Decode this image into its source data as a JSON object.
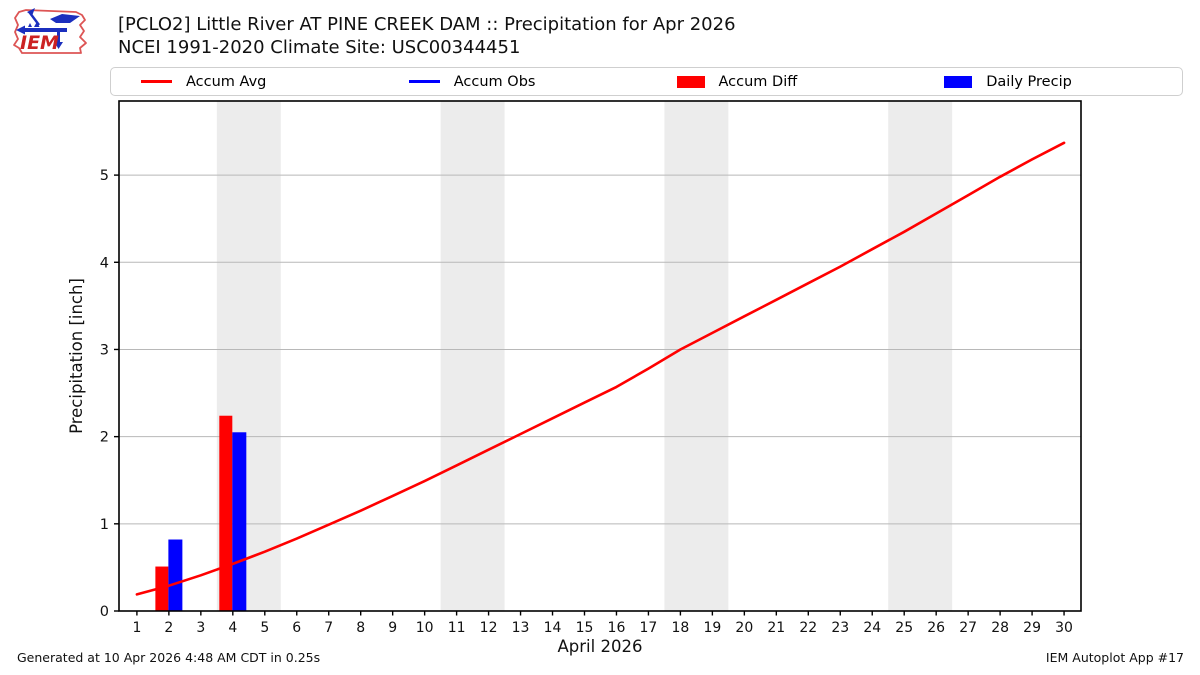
{
  "header": {
    "title_line1": "[PCLO2] Little River  AT PINE CREEK DAM :: Precipitation for Apr 2026",
    "title_line2": "NCEI 1991-2020 Climate Site: USC00344451",
    "logo_text": "IEM"
  },
  "legend": {
    "items": [
      {
        "label": "Accum Avg",
        "swatch": "line",
        "color": "#ff0000"
      },
      {
        "label": "Accum Obs",
        "swatch": "line",
        "color": "#0000ff"
      },
      {
        "label": "Accum Diff",
        "swatch": "rect",
        "color": "#ff0000"
      },
      {
        "label": "Daily Precip",
        "swatch": "rect",
        "color": "#0000ff"
      }
    ]
  },
  "chart_data": {
    "type": "line+bar",
    "xlabel": "April 2026",
    "ylabel": "Precipitation [inch]",
    "xlim": [
      0.44,
      30.53
    ],
    "ylim": [
      0,
      5.85
    ],
    "yticks": [
      0,
      1,
      2,
      3,
      4,
      5
    ],
    "xticks": [
      1,
      2,
      3,
      4,
      5,
      6,
      7,
      8,
      9,
      10,
      11,
      12,
      13,
      14,
      15,
      16,
      17,
      18,
      19,
      20,
      21,
      22,
      23,
      24,
      25,
      26,
      27,
      28,
      29,
      30
    ],
    "grid": "horizontal",
    "weekend_bands": [
      [
        3.5,
        5.5
      ],
      [
        10.5,
        12.5
      ],
      [
        17.5,
        19.5
      ],
      [
        24.5,
        26.5
      ]
    ],
    "series": [
      {
        "name": "Accum Avg",
        "kind": "line",
        "color": "#ff0000",
        "x": [
          1,
          2,
          3,
          4,
          5,
          6,
          7,
          8,
          9,
          10,
          11,
          12,
          13,
          14,
          15,
          16,
          17,
          18,
          19,
          20,
          21,
          22,
          23,
          24,
          25,
          26,
          27,
          28,
          29,
          30
        ],
        "values": [
          0.19,
          0.29,
          0.41,
          0.54,
          0.68,
          0.83,
          0.99,
          1.15,
          1.32,
          1.49,
          1.67,
          1.85,
          2.03,
          2.21,
          2.39,
          2.57,
          2.78,
          3.0,
          3.19,
          3.38,
          3.57,
          3.76,
          3.95,
          4.15,
          4.35,
          4.56,
          4.77,
          4.98,
          5.18,
          5.37
        ]
      }
    ],
    "bars": [
      {
        "day": 2,
        "accum_diff": 0.51,
        "daily_precip": 0.82
      },
      {
        "day": 4,
        "accum_diff": 2.24,
        "daily_precip": 2.05
      }
    ],
    "bar_colors": {
      "accum_diff": "#ff0000",
      "daily_precip": "#0000ff"
    },
    "colors": {
      "band": "#ececec",
      "gridline": "#b8b8b8",
      "axis": "#000000"
    }
  },
  "footer": {
    "left": "Generated at 10 Apr 2026 4:48 AM CDT in 0.25s",
    "right": "IEM Autoplot App #17"
  }
}
